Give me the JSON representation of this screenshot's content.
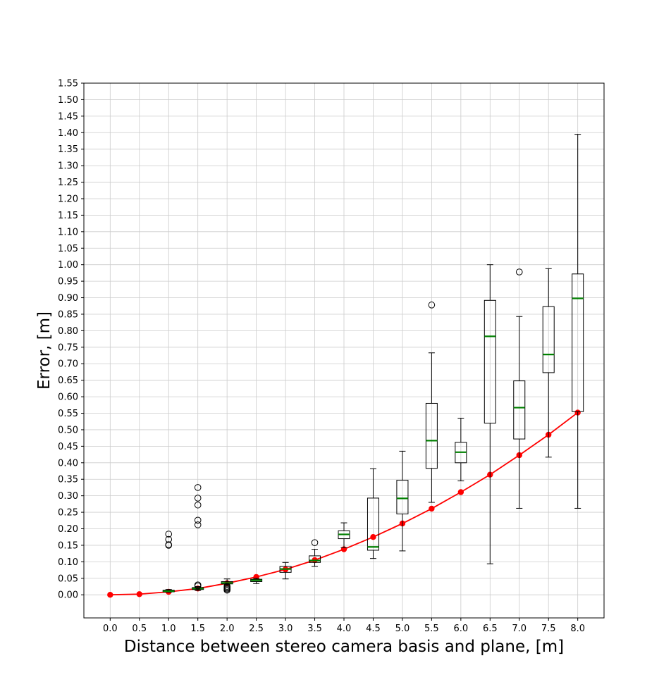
{
  "chart_data": {
    "type": "box",
    "title": "",
    "xlabel": "Distance between stereo camera basis and plane, [m]",
    "ylabel": "Error, [m]",
    "ylim": [
      -0.07,
      1.55
    ],
    "grid": true,
    "categories": [
      "0.0",
      "0.5",
      "1.0",
      "1.5",
      "2.0",
      "2.5",
      "3.0",
      "3.5",
      "4.0",
      "4.5",
      "5.0",
      "5.5",
      "6.0",
      "6.5",
      "7.0",
      "7.5",
      "8.0"
    ],
    "y_ticks": [
      "0.00",
      "0.05",
      "0.10",
      "0.15",
      "0.20",
      "0.25",
      "0.30",
      "0.35",
      "0.40",
      "0.45",
      "0.50",
      "0.55",
      "0.60",
      "0.65",
      "0.70",
      "0.75",
      "0.80",
      "0.85",
      "0.90",
      "0.95",
      "1.00",
      "1.05",
      "1.10",
      "1.15",
      "1.20",
      "1.25",
      "1.30",
      "1.35",
      "1.40",
      "1.45",
      "1.50",
      "1.55"
    ],
    "boxes": [
      {
        "x": 1.0,
        "whislo": 0.008,
        "q1": 0.009,
        "med": 0.011,
        "q3": 0.014,
        "whishi": 0.016,
        "fliers": [
          0.15,
          0.152,
          0.168,
          0.184
        ]
      },
      {
        "x": 1.5,
        "whislo": 0.013,
        "q1": 0.016,
        "med": 0.019,
        "q3": 0.022,
        "whishi": 0.025,
        "fliers": [
          0.027,
          0.03,
          0.212,
          0.226,
          0.272,
          0.293,
          0.325
        ]
      },
      {
        "x": 2.0,
        "whislo": 0.03,
        "q1": 0.033,
        "med": 0.036,
        "q3": 0.04,
        "whishi": 0.048,
        "fliers": [
          0.014,
          0.017,
          0.02,
          0.023,
          0.026
        ]
      },
      {
        "x": 2.5,
        "whislo": 0.034,
        "q1": 0.04,
        "med": 0.044,
        "q3": 0.047,
        "whishi": 0.05,
        "fliers": []
      },
      {
        "x": 3.0,
        "whislo": 0.048,
        "q1": 0.068,
        "med": 0.078,
        "q3": 0.086,
        "whishi": 0.098,
        "fliers": []
      },
      {
        "x": 3.5,
        "whislo": 0.086,
        "q1": 0.098,
        "med": 0.104,
        "q3": 0.118,
        "whishi": 0.138,
        "fliers": [
          0.158
        ]
      },
      {
        "x": 4.0,
        "whislo": 0.143,
        "q1": 0.17,
        "med": 0.183,
        "q3": 0.194,
        "whishi": 0.218,
        "fliers": []
      },
      {
        "x": 4.5,
        "whislo": 0.11,
        "q1": 0.135,
        "med": 0.145,
        "q3": 0.293,
        "whishi": 0.382,
        "fliers": []
      },
      {
        "x": 5.0,
        "whislo": 0.133,
        "q1": 0.245,
        "med": 0.292,
        "q3": 0.347,
        "whishi": 0.435,
        "fliers": []
      },
      {
        "x": 5.5,
        "whislo": 0.28,
        "q1": 0.383,
        "med": 0.467,
        "q3": 0.58,
        "whishi": 0.733,
        "fliers": [
          0.878
        ]
      },
      {
        "x": 6.0,
        "whislo": 0.345,
        "q1": 0.4,
        "med": 0.432,
        "q3": 0.462,
        "whishi": 0.535,
        "fliers": []
      },
      {
        "x": 6.5,
        "whislo": 0.094,
        "q1": 0.52,
        "med": 0.783,
        "q3": 0.892,
        "whishi": 1.0,
        "fliers": []
      },
      {
        "x": 7.0,
        "whislo": 0.262,
        "q1": 0.472,
        "med": 0.567,
        "q3": 0.648,
        "whishi": 0.843,
        "fliers": [
          0.978
        ]
      },
      {
        "x": 7.5,
        "whislo": 0.417,
        "q1": 0.673,
        "med": 0.728,
        "q3": 0.873,
        "whishi": 0.988,
        "fliers": []
      },
      {
        "x": 8.0,
        "whislo": 0.262,
        "q1": 0.555,
        "med": 0.898,
        "q3": 0.972,
        "whishi": 1.395,
        "fliers": []
      }
    ],
    "line_series": {
      "color": "#ff0000",
      "x": [
        0.0,
        0.5,
        1.0,
        1.5,
        2.0,
        2.5,
        3.0,
        3.5,
        4.0,
        4.5,
        5.0,
        5.5,
        6.0,
        6.5,
        7.0,
        7.5,
        8.0
      ],
      "y": [
        0.0,
        0.002,
        0.009,
        0.019,
        0.035,
        0.054,
        0.077,
        0.105,
        0.138,
        0.175,
        0.216,
        0.261,
        0.311,
        0.364,
        0.423,
        0.485,
        0.552
      ]
    },
    "colors": {
      "median": "#008000",
      "box": "#000000",
      "line": "#ff0000",
      "grid": "#cccccc"
    }
  }
}
